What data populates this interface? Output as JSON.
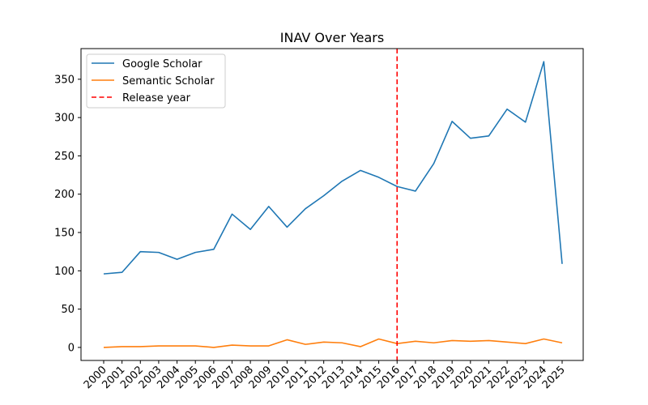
{
  "chart_data": {
    "type": "line",
    "title": "INAV Over Years",
    "xlabel": "",
    "ylabel": "",
    "categories": [
      "2000",
      "2001",
      "2002",
      "2003",
      "2004",
      "2005",
      "2006",
      "2007",
      "2008",
      "2009",
      "2010",
      "2011",
      "2012",
      "2013",
      "2014",
      "2015",
      "2016",
      "2017",
      "2018",
      "2019",
      "2020",
      "2021",
      "2022",
      "2023",
      "2024",
      "2025"
    ],
    "ylim": [
      -17,
      390
    ],
    "yticks": [
      0,
      50,
      100,
      150,
      200,
      250,
      300,
      350
    ],
    "grid": false,
    "legend_position": "top-left",
    "series": [
      {
        "name": "Google Scholar",
        "color": "#1f77b4",
        "values": [
          96,
          98,
          125,
          124,
          115,
          124,
          128,
          174,
          154,
          184,
          157,
          181,
          198,
          217,
          231,
          222,
          210,
          204,
          240,
          295,
          273,
          276,
          311,
          294,
          373,
          109
        ]
      },
      {
        "name": "Semantic Scholar",
        "color": "#ff7f0e",
        "values": [
          0,
          1,
          1,
          2,
          2,
          2,
          0,
          3,
          2,
          2,
          10,
          4,
          7,
          6,
          1,
          11,
          5,
          8,
          6,
          9,
          8,
          9,
          7,
          5,
          11,
          6
        ]
      }
    ],
    "vline": {
      "name": "Release year",
      "x": "2016",
      "color": "#ff0000",
      "style": "dashed"
    }
  }
}
